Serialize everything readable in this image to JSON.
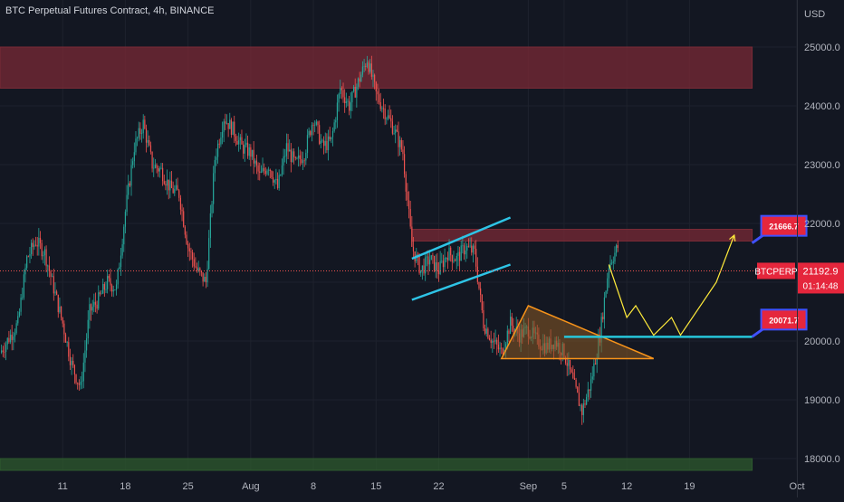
{
  "title": "BTC Perpetual Futures Contract, 4h, BINANCE",
  "currency": "USD",
  "colors": {
    "background": "#131722",
    "grid": "#1e222d",
    "up": "#26a69a",
    "down": "#ef5350",
    "resistance_zone": "#7a2a36",
    "support_zone": "#2e5a2e",
    "channel": "#2ec4e6",
    "triangle_fill": "#8a5a24",
    "triangle_stroke": "#f7931a",
    "projection": "#ffeb3b",
    "support_line": "#26c6da",
    "label_bg": "#e5263c",
    "label_border": "#3f51ff"
  },
  "current_price": {
    "symbol": "BTCPERP",
    "price": "21192.9",
    "countdown": "01:14:48",
    "value": 21192.9
  },
  "annotations": [
    {
      "text": "21666.7",
      "value": 21666.7
    },
    {
      "text": "20071.7",
      "value": 20071.7
    }
  ],
  "chart_data": {
    "type": "candlestick",
    "title": "BTC Perpetual Futures Contract, 4h, BINANCE",
    "y_axis": {
      "label": "USD",
      "ticks": [
        25000,
        24000,
        23000,
        22000,
        21000,
        20000,
        19000,
        18000
      ],
      "tick_labels": [
        "25000.0",
        "24000.0",
        "23000.0",
        "22000.0",
        "21000.0",
        "20000.0",
        "19000.0",
        "18000.0"
      ],
      "range": [
        17800,
        25800
      ]
    },
    "x_axis": {
      "tick_labels": [
        "11",
        "18",
        "25",
        "Aug",
        "8",
        "15",
        "22",
        "Sep",
        "5",
        "12",
        "19",
        "Oct"
      ],
      "tick_dates": [
        "2022-07-11",
        "2022-07-18",
        "2022-07-25",
        "2022-08-01",
        "2022-08-08",
        "2022-08-15",
        "2022-08-22",
        "2022-09-01",
        "2022-09-05",
        "2022-09-12",
        "2022-09-19",
        "2022-10-01"
      ],
      "range": [
        "2022-07-04",
        "2022-10-01"
      ]
    },
    "close_path": [
      [
        "2022-07-04",
        19800
      ],
      [
        "2022-07-06",
        20300
      ],
      [
        "2022-07-07",
        21400
      ],
      [
        "2022-07-08",
        21700
      ],
      [
        "2022-07-09",
        21500
      ],
      [
        "2022-07-10",
        20900
      ],
      [
        "2022-07-11",
        20300
      ],
      [
        "2022-07-12",
        19600
      ],
      [
        "2022-07-13",
        19200
      ],
      [
        "2022-07-14",
        20500
      ],
      [
        "2022-07-15",
        20700
      ],
      [
        "2022-07-16",
        21000
      ],
      [
        "2022-07-17",
        20900
      ],
      [
        "2022-07-18",
        22200
      ],
      [
        "2022-07-19",
        23300
      ],
      [
        "2022-07-20",
        23700
      ],
      [
        "2022-07-21",
        23000
      ],
      [
        "2022-07-22",
        22900
      ],
      [
        "2022-07-23",
        22600
      ],
      [
        "2022-07-24",
        22500
      ],
      [
        "2022-07-25",
        21600
      ],
      [
        "2022-07-26",
        21200
      ],
      [
        "2022-07-27",
        21000
      ],
      [
        "2022-07-28",
        23100
      ],
      [
        "2022-07-29",
        23800
      ],
      [
        "2022-07-30",
        23600
      ],
      [
        "2022-07-31",
        23300
      ],
      [
        "2022-08-01",
        23200
      ],
      [
        "2022-08-02",
        22800
      ],
      [
        "2022-08-03",
        23000
      ],
      [
        "2022-08-04",
        22600
      ],
      [
        "2022-08-05",
        23300
      ],
      [
        "2022-08-06",
        23000
      ],
      [
        "2022-08-07",
        23200
      ],
      [
        "2022-08-08",
        23800
      ],
      [
        "2022-08-09",
        23300
      ],
      [
        "2022-08-10",
        23400
      ],
      [
        "2022-08-11",
        24300
      ],
      [
        "2022-08-12",
        24000
      ],
      [
        "2022-08-13",
        24400
      ],
      [
        "2022-08-14",
        24800
      ],
      [
        "2022-08-15",
        24200
      ],
      [
        "2022-08-16",
        23900
      ],
      [
        "2022-08-17",
        23600
      ],
      [
        "2022-08-18",
        23200
      ],
      [
        "2022-08-19",
        21600
      ],
      [
        "2022-08-20",
        21200
      ],
      [
        "2022-08-21",
        21400
      ],
      [
        "2022-08-22",
        21200
      ],
      [
        "2022-08-23",
        21500
      ],
      [
        "2022-08-24",
        21400
      ],
      [
        "2022-08-25",
        21600
      ],
      [
        "2022-08-26",
        21500
      ],
      [
        "2022-08-27",
        20300
      ],
      [
        "2022-08-28",
        20000
      ],
      [
        "2022-08-29",
        19800
      ],
      [
        "2022-08-30",
        20300
      ],
      [
        "2022-08-31",
        20100
      ],
      [
        "2022-09-01",
        20200
      ],
      [
        "2022-09-02",
        20000
      ],
      [
        "2022-09-03",
        19900
      ],
      [
        "2022-09-04",
        20000
      ],
      [
        "2022-09-05",
        19800
      ],
      [
        "2022-09-06",
        19300
      ],
      [
        "2022-09-07",
        18800
      ],
      [
        "2022-09-08",
        19300
      ],
      [
        "2022-09-09",
        20100
      ],
      [
        "2022-09-10",
        21300
      ],
      [
        "2022-09-11",
        21600
      ]
    ],
    "zones": [
      {
        "name": "resistance",
        "from": 24300,
        "to": 25000,
        "x_from": "2022-07-04",
        "x_to": "2022-09-26"
      },
      {
        "name": "target-zone",
        "from": 21700,
        "to": 21900,
        "x_from": "2022-08-19",
        "x_to": "2022-09-26"
      },
      {
        "name": "support",
        "from": 17800,
        "to": 18000,
        "x_from": "2022-07-04",
        "x_to": "2022-09-26"
      }
    ],
    "channel": [
      {
        "from": [
          "2022-08-19",
          21400
        ],
        "to": [
          "2022-08-30",
          22100
        ]
      },
      {
        "from": [
          "2022-08-19",
          20700
        ],
        "to": [
          "2022-08-30",
          21300
        ]
      }
    ],
    "triangle": [
      [
        "2022-08-29",
        19700
      ],
      [
        "2022-09-01",
        20600
      ],
      [
        "2022-09-15",
        19700
      ]
    ],
    "support_line": {
      "value": 20071.7,
      "x_from": "2022-09-05",
      "x_to": "2022-09-26"
    },
    "projection": [
      [
        "2022-09-10",
        21300
      ],
      [
        "2022-09-12",
        20400
      ],
      [
        "2022-09-13",
        20600
      ],
      [
        "2022-09-15",
        20100
      ],
      [
        "2022-09-17",
        20400
      ],
      [
        "2022-09-18",
        20100
      ],
      [
        "2022-09-22",
        21000
      ],
      [
        "2022-09-24",
        21800
      ]
    ]
  }
}
